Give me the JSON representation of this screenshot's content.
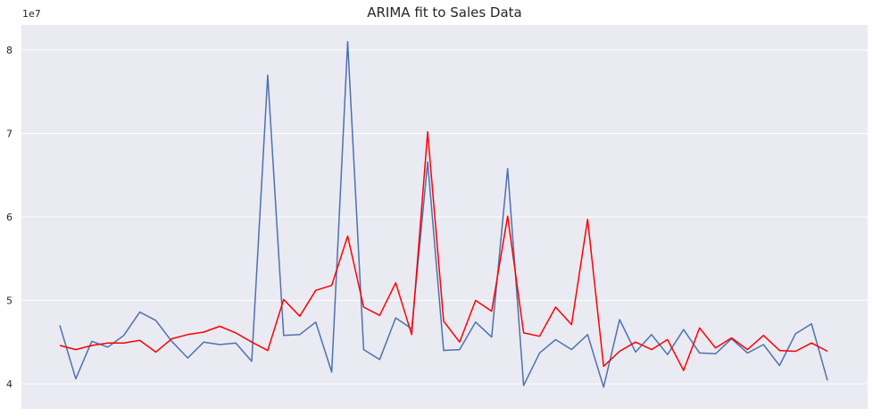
{
  "chart_data": {
    "type": "line",
    "title": "ARIMA fit to Sales Data",
    "xlabel": "",
    "ylabel": "",
    "y_offset_label": "1e7",
    "y_scale": 10000000,
    "ylim": [
      3.7,
      8.3
    ],
    "yticks": [
      4,
      5,
      6,
      7,
      8
    ],
    "grid": true,
    "background": "#eaeaf2",
    "x": [
      0,
      1,
      2,
      3,
      4,
      5,
      6,
      7,
      8,
      9,
      10,
      11,
      12,
      13,
      14,
      15,
      16,
      17,
      18,
      19,
      20,
      21,
      22,
      23,
      24,
      25,
      26,
      27,
      28,
      29,
      30,
      31,
      32,
      33,
      34,
      35,
      36,
      37,
      38,
      39,
      40,
      41,
      42,
      43,
      44,
      45,
      46,
      47,
      48
    ],
    "series": [
      {
        "color": "#4c72b0",
        "values": [
          4.7,
          4.06,
          4.51,
          4.44,
          4.58,
          4.86,
          4.76,
          4.51,
          4.31,
          4.5,
          4.47,
          4.49,
          4.27,
          7.7,
          4.58,
          4.59,
          4.74,
          4.14,
          8.1,
          4.41,
          4.29,
          4.79,
          4.66,
          6.66,
          4.4,
          4.41,
          4.74,
          4.56,
          6.58,
          3.98,
          4.37,
          4.53,
          4.41,
          4.59,
          3.96,
          4.77,
          4.38,
          4.59,
          4.35,
          4.65,
          4.37,
          4.36,
          4.54,
          4.37,
          4.47,
          4.22,
          4.6,
          4.72,
          4.04
        ]
      },
      {
        "color": "#ff0000",
        "values": [
          4.46,
          4.41,
          4.46,
          4.49,
          4.49,
          4.52,
          4.38,
          4.54,
          4.59,
          4.62,
          4.69,
          4.61,
          4.5,
          4.4,
          5.01,
          4.81,
          5.12,
          5.18,
          5.77,
          4.92,
          4.82,
          5.21,
          4.59,
          7.02,
          4.75,
          4.5,
          5.0,
          4.87,
          6.01,
          4.61,
          4.57,
          4.92,
          4.71,
          5.97,
          4.21,
          4.39,
          4.5,
          4.41,
          4.53,
          4.16,
          4.67,
          4.43,
          4.55,
          4.41,
          4.58,
          4.4,
          4.39,
          4.49,
          4.39
        ]
      }
    ]
  }
}
